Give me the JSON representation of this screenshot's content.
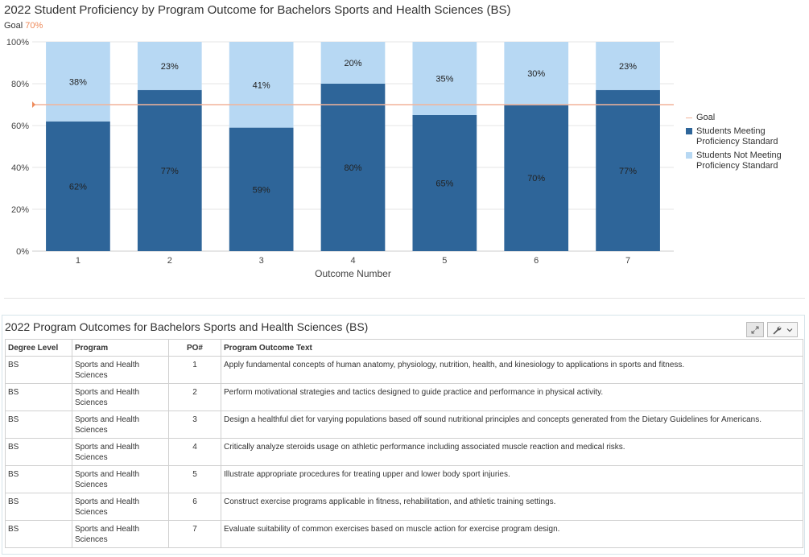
{
  "chart_data": {
    "type": "bar",
    "stacked": true,
    "title": "2022 Student Proficiency by Program Outcome for Bachelors Sports and Health Sciences (BS)",
    "goal_label": "Goal",
    "goal_value_text": "70%",
    "goal": 70,
    "categories": [
      "1",
      "2",
      "3",
      "4",
      "5",
      "6",
      "7"
    ],
    "series": [
      {
        "name": "Students Meeting Proficiency Standard",
        "values": [
          62,
          77,
          59,
          80,
          65,
          70,
          77
        ],
        "labels": [
          "62%",
          "77%",
          "59%",
          "80%",
          "65%",
          "70%",
          "77%"
        ],
        "color": "#2e6599"
      },
      {
        "name": "Students Not Meeting Proficiency Standard",
        "values": [
          38,
          23,
          41,
          20,
          35,
          30,
          23
        ],
        "labels": [
          "38%",
          "23%",
          "41%",
          "20%",
          "35%",
          "30%",
          "23%"
        ],
        "color": "#b7d8f3"
      }
    ],
    "xlabel": "Outcome Number",
    "ylabel": "",
    "ylim": [
      0,
      100
    ],
    "yticks": [
      "0%",
      "20%",
      "40%",
      "60%",
      "80%",
      "100%"
    ],
    "grid": true,
    "legend_position": "right",
    "legend": [
      "Goal",
      "Students Meeting Proficiency Standard",
      "Students Not Meeting Proficiency Standard"
    ],
    "goal_color": "#f2b49a"
  },
  "table": {
    "title": "2022 Program Outcomes for Bachelors Sports and Health Sciences (BS)",
    "columns": [
      "Degree Level",
      "Program",
      "PO#",
      "Program Outcome Text"
    ],
    "rows": [
      [
        "BS",
        "Sports and Health Sciences",
        "1",
        "Apply fundamental concepts of human anatomy, physiology, nutrition, health, and kinesiology to applications in sports and fitness."
      ],
      [
        "BS",
        "Sports and Health Sciences",
        "2",
        "Perform motivational strategies and tactics designed to guide practice and performance in physical activity."
      ],
      [
        "BS",
        "Sports and Health Sciences",
        "3",
        "Design a healthful diet for varying populations based off sound nutritional principles and concepts generated from the Dietary Guidelines for Americans."
      ],
      [
        "BS",
        "Sports and Health Sciences",
        "4",
        "Critically analyze steroids usage on athletic performance including associated muscle reaction and medical risks."
      ],
      [
        "BS",
        "Sports and Health Sciences",
        "5",
        "Illustrate appropriate procedures for treating upper and lower body sport injuries."
      ],
      [
        "BS",
        "Sports and Health Sciences",
        "6",
        "Construct exercise programs applicable in fitness, rehabilitation, and athletic training settings."
      ],
      [
        "BS",
        "Sports and Health Sciences",
        "7",
        "Evaluate suitability of common exercises based on muscle action for exercise program design."
      ]
    ],
    "tools": {
      "expand_icon": "expand-icon",
      "settings_icon": "wrench-icon",
      "chevron_icon": "chevron-down-icon"
    }
  }
}
